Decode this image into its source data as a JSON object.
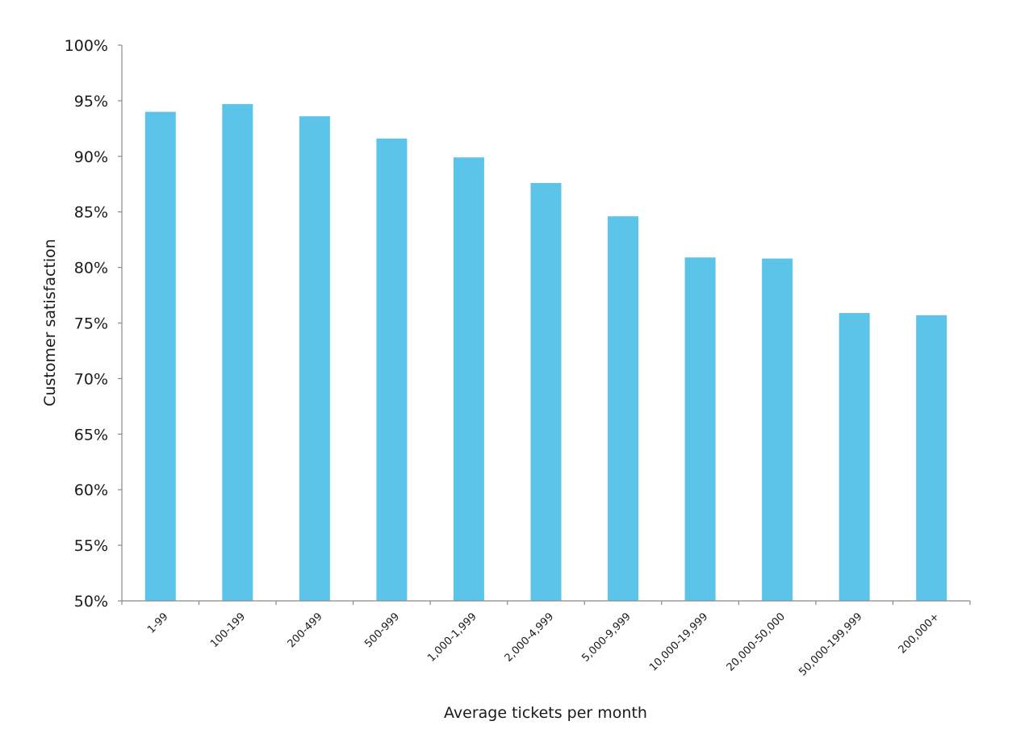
{
  "chart_data": {
    "type": "bar",
    "title": "",
    "xlabel": "Average tickets per month",
    "ylabel": "Customer satisfaction",
    "ylim": [
      50,
      100
    ],
    "y_ticks": [
      50,
      55,
      60,
      65,
      70,
      75,
      80,
      85,
      90,
      95,
      100
    ],
    "y_tick_labels": [
      "50%",
      "55%",
      "60%",
      "65%",
      "70%",
      "75%",
      "80%",
      "85%",
      "90%",
      "95%",
      "100%"
    ],
    "categories": [
      "1-99",
      "100-199",
      "200-499",
      "500-999",
      "1,000-1,999",
      "2,000-4,999",
      "5,000-9,999",
      "10,000-19,999",
      "20,000-50,000",
      "50,000-199,999",
      "200,000+"
    ],
    "values": [
      94.0,
      94.7,
      93.6,
      91.6,
      89.9,
      87.6,
      84.6,
      80.9,
      80.8,
      75.9,
      75.7
    ],
    "bar_color": "#5BC4E8",
    "axis_color": "#8a8a8a",
    "grid": false,
    "legend": "none"
  }
}
